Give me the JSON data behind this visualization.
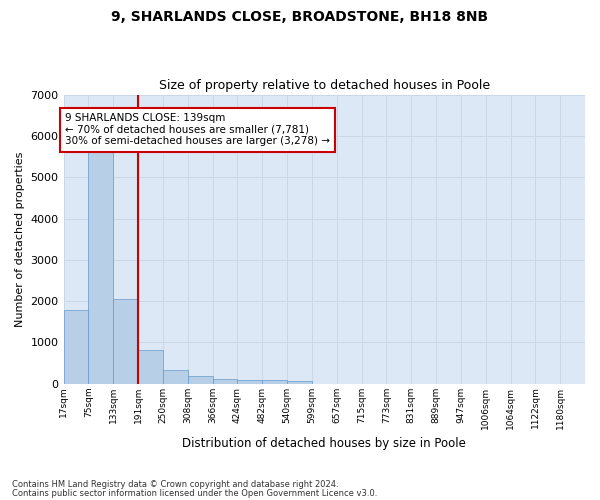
{
  "title_line1": "9, SHARLANDS CLOSE, BROADSTONE, BH18 8NB",
  "title_line2": "Size of property relative to detached houses in Poole",
  "xlabel": "Distribution of detached houses by size in Poole",
  "ylabel": "Number of detached properties",
  "footnote1": "Contains HM Land Registry data © Crown copyright and database right 2024.",
  "footnote2": "Contains public sector information licensed under the Open Government Licence v3.0.",
  "bar_color": "#b8cfe8",
  "bar_edge_color": "#6699cc",
  "ax_facecolor": "#dce8f5",
  "annotation_box_color": "#cc0000",
  "annotation_line1": "9 SHARLANDS CLOSE: 139sqm",
  "annotation_line2": "← 70% of detached houses are smaller (7,781)",
  "annotation_line3": "30% of semi-detached houses are larger (3,278) →",
  "property_line_color": "#cc0000",
  "property_bar_index": 2,
  "categories": [
    "17sqm",
    "75sqm",
    "133sqm",
    "191sqm",
    "250sqm",
    "308sqm",
    "366sqm",
    "424sqm",
    "482sqm",
    "540sqm",
    "599sqm",
    "657sqm",
    "715sqm",
    "773sqm",
    "831sqm",
    "889sqm",
    "947sqm",
    "1006sqm",
    "1064sqm",
    "1122sqm",
    "1180sqm"
  ],
  "values": [
    1780,
    5800,
    2060,
    820,
    340,
    185,
    110,
    100,
    90,
    75,
    0,
    0,
    0,
    0,
    0,
    0,
    0,
    0,
    0,
    0,
    0
  ],
  "ylim": [
    0,
    7000
  ],
  "yticks": [
    0,
    1000,
    2000,
    3000,
    4000,
    5000,
    6000,
    7000
  ],
  "background_color": "#ffffff",
  "grid_color": "#c8d8e8"
}
